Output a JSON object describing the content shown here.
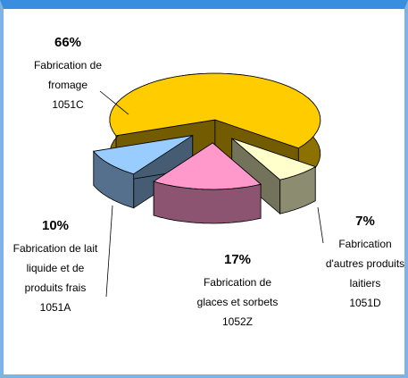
{
  "chart_data": {
    "type": "pie",
    "categories": [
      [
        "Fabrication de",
        "fromage",
        "1051C"
      ],
      [
        "Fabrication",
        "d'autres produits",
        "laitiers",
        "1051D"
      ],
      [
        "Fabrication de",
        "glaces et sorbets",
        "1052Z"
      ],
      [
        "Fabrication de lait",
        "liquide et de",
        "produits frais",
        "1051A"
      ]
    ],
    "values": [
      66,
      7,
      17,
      10
    ],
    "value_labels": [
      "66%",
      "7%",
      "17%",
      "10%"
    ],
    "colors": [
      "#FFCC00",
      "#FFFFCC",
      "#FF99CC",
      "#99CCFF"
    ]
  }
}
